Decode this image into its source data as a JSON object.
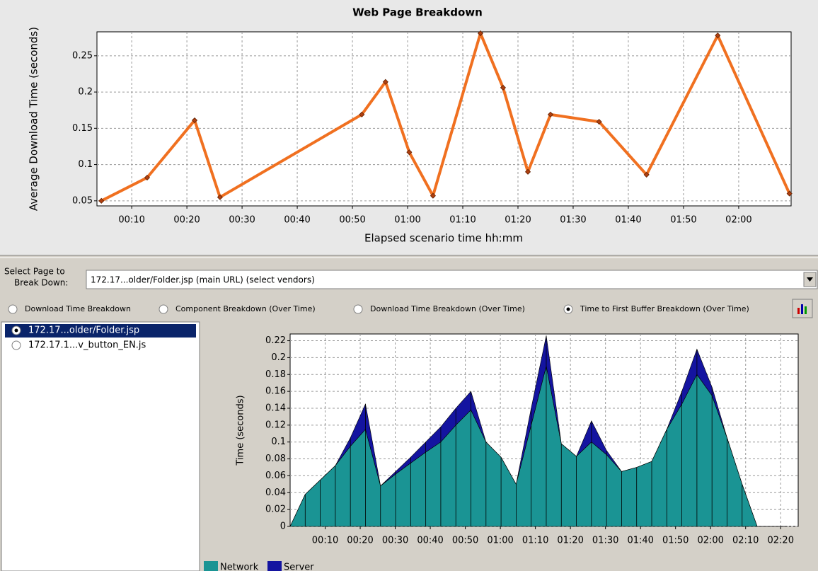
{
  "ui": {
    "select_label": [
      "Select Page to",
      "Break Down:"
    ],
    "dropdown": "172.17...older/Folder.jsp (main URL) (select vendors)",
    "radios": [
      "Download Time Breakdown",
      "Component Breakdown (Over Time)",
      "Download Time Breakdown (Over Time)",
      "Time to First Buffer Breakdown (Over Time)"
    ],
    "list": [
      "172.17...older/Folder.jsp",
      "172.17.1...v_button_EN.js"
    ]
  },
  "chart_data": [
    {
      "type": "line",
      "title": "Web Page Breakdown",
      "x_label": "Elapsed scenario time hh:mm",
      "y_label": "Average Download Time (seconds)",
      "x": [
        4.5,
        12.8,
        21.4,
        26.0,
        51.7,
        56.0,
        60.3,
        64.6,
        73.2,
        77.3,
        81.8,
        85.9,
        94.7,
        103.3,
        116.2,
        129.2
      ],
      "series": [
        {
          "name": null,
          "color": "#f07020",
          "values": [
            0.05,
            0.082,
            0.161,
            0.055,
            0.169,
            0.214,
            0.117,
            0.057,
            0.281,
            0.206,
            0.09,
            0.169,
            0.159,
            0.086,
            0.278,
            0.06
          ]
        }
      ],
      "xlim": [
        3.7,
        129.5
      ],
      "ylim": [
        0.043,
        0.283
      ],
      "xticks": [
        {
          "value": 10,
          "label": "00:10"
        },
        {
          "value": 20,
          "label": "00:20"
        },
        {
          "value": 30,
          "label": "00:30"
        },
        {
          "value": 40,
          "label": "00:40"
        },
        {
          "value": 50,
          "label": "00:50"
        },
        {
          "value": 60,
          "label": "01:00"
        },
        {
          "value": 70,
          "label": "01:10"
        },
        {
          "value": 80,
          "label": "01:20"
        },
        {
          "value": 90,
          "label": "01:30"
        },
        {
          "value": 100,
          "label": "01:40"
        },
        {
          "value": 110,
          "label": "01:50"
        },
        {
          "value": 120,
          "label": "02:00"
        }
      ],
      "yticks": [
        0.05,
        0.1,
        0.15,
        0.2,
        0.25
      ],
      "grid": true
    },
    {
      "type": "stacked_area",
      "y_label": "Time (seconds)",
      "x": [
        0,
        4.3,
        8.6,
        12.9,
        17.2,
        21.5,
        25.8,
        30.1,
        34.4,
        38.7,
        43,
        47.3,
        51.6,
        55.9,
        60.2,
        64.5,
        68.8,
        73.1,
        77.4,
        81.7,
        86,
        90.3,
        94.6,
        98.9,
        103.2,
        107.5,
        111.8,
        116.1,
        120.4,
        124.7,
        129,
        133.3,
        137.6,
        141.9
      ],
      "series": [
        {
          "name": "Network",
          "color": "#1a9494",
          "values": [
            0,
            0.038,
            0.055,
            0.072,
            0.095,
            0.115,
            0.048,
            0.062,
            0.075,
            0.088,
            0.1,
            0.12,
            0.138,
            0.1,
            0.082,
            0.05,
            0.12,
            0.19,
            0.098,
            0.083,
            0.1,
            0.085,
            0.065,
            0.07,
            0.077,
            0.115,
            0.145,
            0.18,
            0.155,
            0.105,
            0.05,
            0,
            0,
            0
          ]
        },
        {
          "name": "Server",
          "color": "#1414a0",
          "values": [
            0,
            0,
            0,
            0,
            0.01,
            0.03,
            0,
            0.003,
            0.007,
            0.012,
            0.018,
            0.02,
            0.022,
            0,
            0,
            0,
            0.02,
            0.036,
            0,
            0,
            0.025,
            0.005,
            0,
            0,
            0,
            0,
            0.015,
            0.03,
            0.01,
            0,
            0,
            0,
            0,
            0
          ]
        }
      ],
      "xlim": [
        0,
        145
      ],
      "ylim": [
        0,
        0.228
      ],
      "xticks": [
        {
          "value": 10,
          "label": "00:10"
        },
        {
          "value": 20,
          "label": "00:20"
        },
        {
          "value": 30,
          "label": "00:30"
        },
        {
          "value": 40,
          "label": "00:40"
        },
        {
          "value": 50,
          "label": "00:50"
        },
        {
          "value": 60,
          "label": "01:00"
        },
        {
          "value": 70,
          "label": "01:10"
        },
        {
          "value": 80,
          "label": "01:20"
        },
        {
          "value": 90,
          "label": "01:30"
        },
        {
          "value": 100,
          "label": "01:40"
        },
        {
          "value": 110,
          "label": "01:50"
        },
        {
          "value": 120,
          "label": "02:00"
        },
        {
          "value": 130,
          "label": "02:10"
        },
        {
          "value": 140,
          "label": "02:20"
        }
      ],
      "yticks": [
        0,
        0.02,
        0.04,
        0.06,
        0.08,
        0.1,
        0.12,
        0.14,
        0.16,
        0.18,
        0.2,
        0.22
      ],
      "grid": true
    }
  ]
}
